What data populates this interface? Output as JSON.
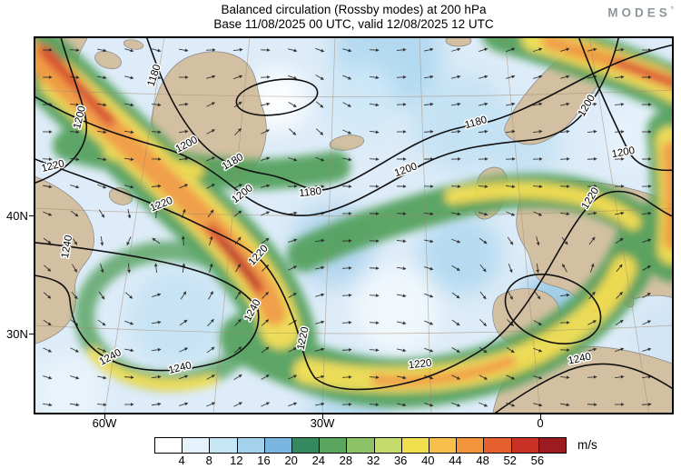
{
  "header": {
    "title_line1": "Balanced circulation (Rossby modes) at 200 hPa",
    "title_line2": "Base 11/08/2025 00 UTC, valid 12/08/2025 12 UTC",
    "brand": "MODES",
    "brand_mark": "°"
  },
  "axes": {
    "lat_labels": [
      "40N",
      "30N"
    ],
    "lon_labels": [
      "60W",
      "30W",
      "0"
    ]
  },
  "contours": {
    "labels": {
      "l1180": "1180",
      "l1200": "1200",
      "l1220": "1220",
      "l1240": "1240"
    }
  },
  "colorbar": {
    "unit": "m/s",
    "tick_labels": [
      "4",
      "8",
      "12",
      "16",
      "20",
      "24",
      "28",
      "32",
      "36",
      "40",
      "44",
      "48",
      "52",
      "56"
    ],
    "colors": [
      "#ffffff",
      "#e4f3fb",
      "#c6e5f5",
      "#a4d2ec",
      "#7ab6df",
      "#35895f",
      "#5aa55f",
      "#8ec267",
      "#c5db6b",
      "#f0e04e",
      "#f6c04b",
      "#f2943c",
      "#e55f2f",
      "#c93026",
      "#9c1b20"
    ]
  },
  "chart_data": {
    "type": "heatmap",
    "title": "Balanced circulation (Rossby modes) at 200 hPa",
    "subtitle": "Base 11/08/2025 00 UTC, valid 12/08/2025 12 UTC",
    "field": "balanced wind speed",
    "units": "m/s",
    "colorbar_levels": [
      4,
      8,
      12,
      16,
      20,
      24,
      28,
      32,
      36,
      40,
      44,
      48,
      52,
      56
    ],
    "contour_overlay": {
      "labeled_values": [
        1180,
        1200,
        1220,
        1240
      ],
      "interval": 20
    },
    "vector_overlay": "wind direction arrows",
    "x_tick_labels": [
      "60W",
      "30W",
      "0"
    ],
    "y_tick_labels": [
      "40N",
      "30N"
    ],
    "legend_position": "bottom"
  }
}
